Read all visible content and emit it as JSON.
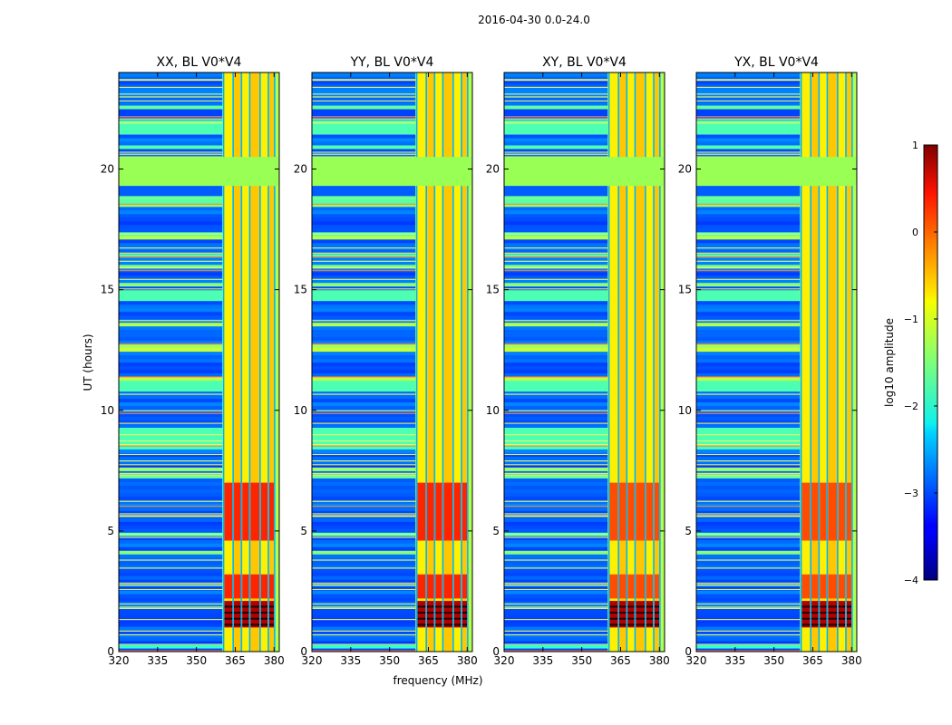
{
  "figure_title": "2016-04-30 0.0-24.0",
  "colormap": "jet",
  "flag_color": "#99ff55",
  "chart_data": {
    "type": "heatmap",
    "xlabel": "frequency (MHz)",
    "ylabel": "UT (hours)",
    "xlim": [
      320,
      382
    ],
    "ylim": [
      0,
      24
    ],
    "xticks": [
      "320",
      "335",
      "350",
      "365",
      "380"
    ],
    "yticks": [
      "0",
      "5",
      "10",
      "15",
      "20"
    ],
    "panels": [
      {
        "title": "XX, BL V0*V4",
        "strong_pol": true
      },
      {
        "title": "YY, BL V0*V4",
        "strong_pol": true
      },
      {
        "title": "XY, BL V0*V4",
        "strong_pol": false
      },
      {
        "title": "YX, BL V0*V4",
        "strong_pol": false
      }
    ],
    "rfi_band_mhz": [
      360,
      382
    ],
    "rfi_channels_mhz": [
      360.5,
      364.2,
      367.4,
      370.6,
      374.6,
      377.8,
      380.2
    ],
    "flagged_ut_hours": [
      19.3,
      20.5
    ],
    "colorbar": {
      "label": "log10 amplitude",
      "range": [
        -4,
        1
      ],
      "ticks": [
        "−4",
        "−3",
        "−2",
        "−1",
        "0",
        "1"
      ]
    }
  }
}
